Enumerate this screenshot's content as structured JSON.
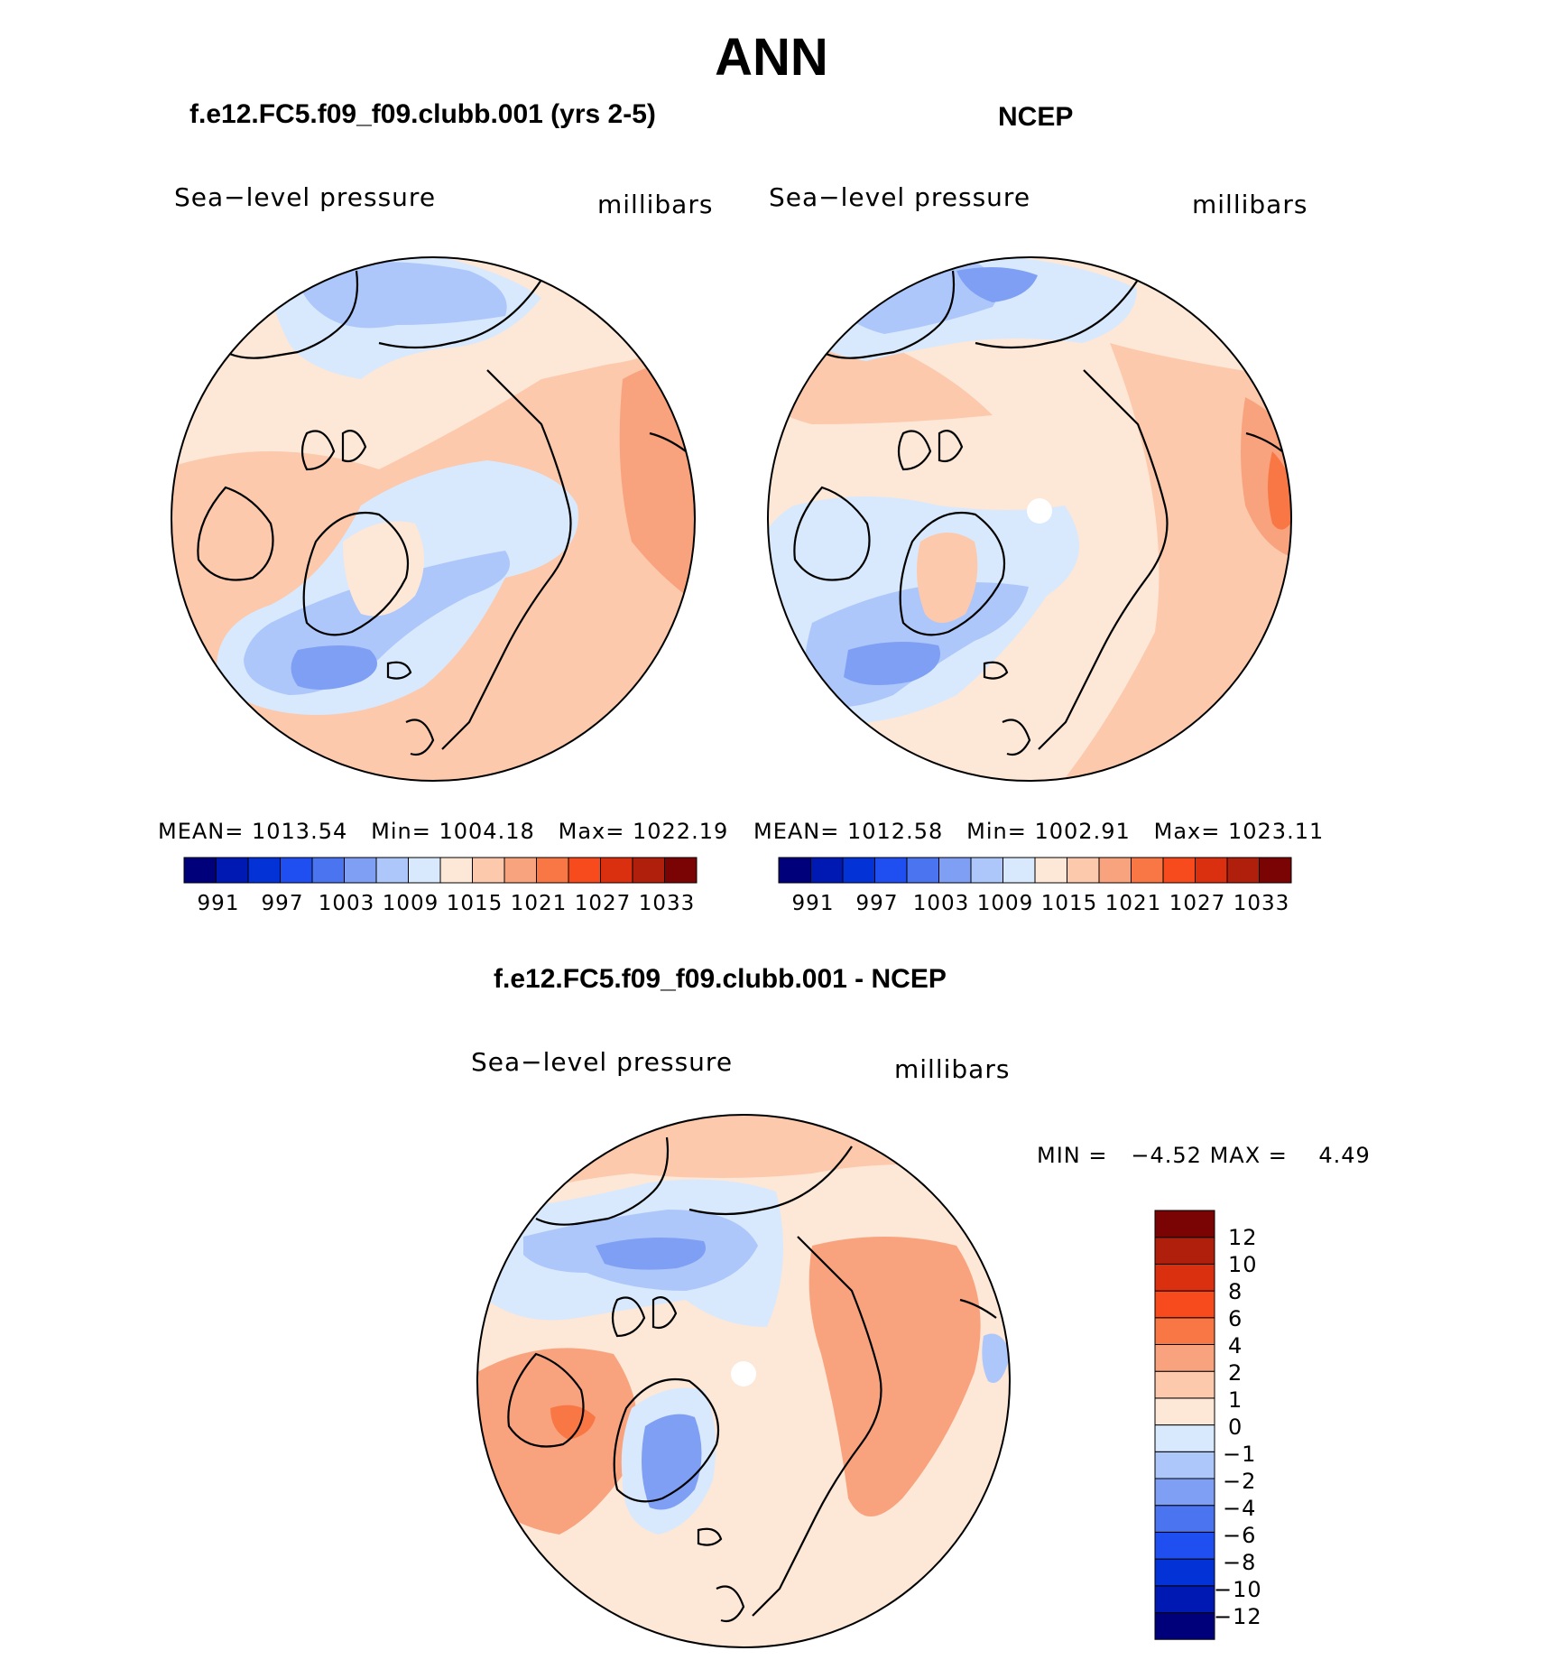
{
  "main_title": "ANN",
  "colors": {
    "abs_levels": [
      "#00007a",
      "#0019b2",
      "#0333d6",
      "#1f4ff0",
      "#4b74f0",
      "#7f9ff5",
      "#adc7fb",
      "#d8e9fd",
      "#fde7d7",
      "#fcc9ad",
      "#f9a37e",
      "#f87745",
      "#f74b1d",
      "#da300f",
      "#b01f0b",
      "#7a0403"
    ],
    "diff_levels": [
      "#00007a",
      "#0019b2",
      "#0333d6",
      "#1f4ff0",
      "#4b74f0",
      "#7f9ff5",
      "#adc7fb",
      "#d8e9fd",
      "#fde7d7",
      "#fcc9ad",
      "#f9a37e",
      "#f87745",
      "#f74b1d",
      "#da300f",
      "#b01f0b",
      "#7a0403"
    ],
    "land_outline": "#000000"
  },
  "chart_data": [
    {
      "type": "heatmap",
      "title": "f.e12.FC5.f09_f09.clubb.001 (yrs 2-5)",
      "variable": "Sea−level pressure",
      "units": "millibars",
      "stats": {
        "mean_label": "MEAN=",
        "mean": "1013.54",
        "min_label": "Min=",
        "min": "1004.18",
        "max_label": "Max=",
        "max": "1022.19"
      },
      "colorbar_ticks": [
        "991",
        "997",
        "1003",
        "1009",
        "1015",
        "1021",
        "1027",
        "1033"
      ],
      "projection": "north polar stereographic"
    },
    {
      "type": "heatmap",
      "title": "NCEP",
      "variable": "Sea−level pressure",
      "units": "millibars",
      "stats": {
        "mean_label": "MEAN=",
        "mean": "1012.58",
        "min_label": "Min=",
        "min": "1002.91",
        "max_label": "Max=",
        "max": "1023.11"
      },
      "colorbar_ticks": [
        "991",
        "997",
        "1003",
        "1009",
        "1015",
        "1021",
        "1027",
        "1033"
      ],
      "projection": "north polar stereographic"
    },
    {
      "type": "heatmap",
      "title": "f.e12.FC5.f09_f09.clubb.001 - NCEP",
      "variable": "Sea−level pressure",
      "units": "millibars",
      "stats": {
        "min_label": "MIN =",
        "min": "−4.52",
        "max_label": "MAX =",
        "max": "4.49"
      },
      "colorbar_ticks": [
        "12",
        "10",
        "8",
        "6",
        "4",
        "2",
        "1",
        "0",
        "−1",
        "−2",
        "−4",
        "−6",
        "−8",
        "−10",
        "−12"
      ],
      "projection": "north polar stereographic"
    }
  ]
}
